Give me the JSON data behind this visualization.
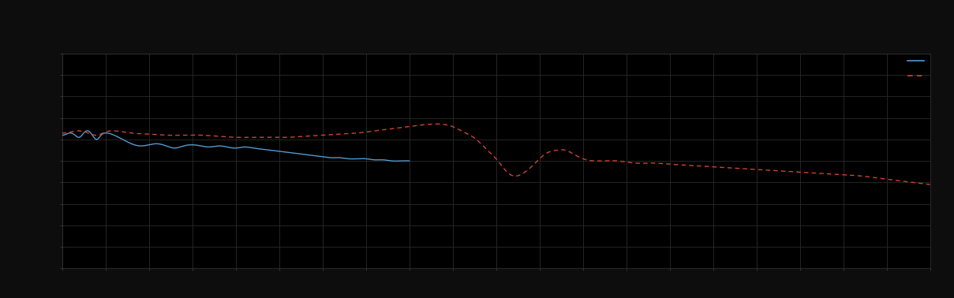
{
  "background_color": "#0d0d0d",
  "plot_bg_color": "#000000",
  "grid_color": "#2a2a2a",
  "line1_color": "#5599cc",
  "line2_color": "#cc4433",
  "figsize": [
    12.09,
    3.78
  ],
  "dpi": 100,
  "xlim": [
    0,
    100
  ],
  "ylim": [
    0,
    100
  ],
  "n_xticks": 21,
  "n_yticks": 11,
  "legend_line1_label": "——",
  "legend_line2_label": "- - - -",
  "spine_color": "#333333"
}
